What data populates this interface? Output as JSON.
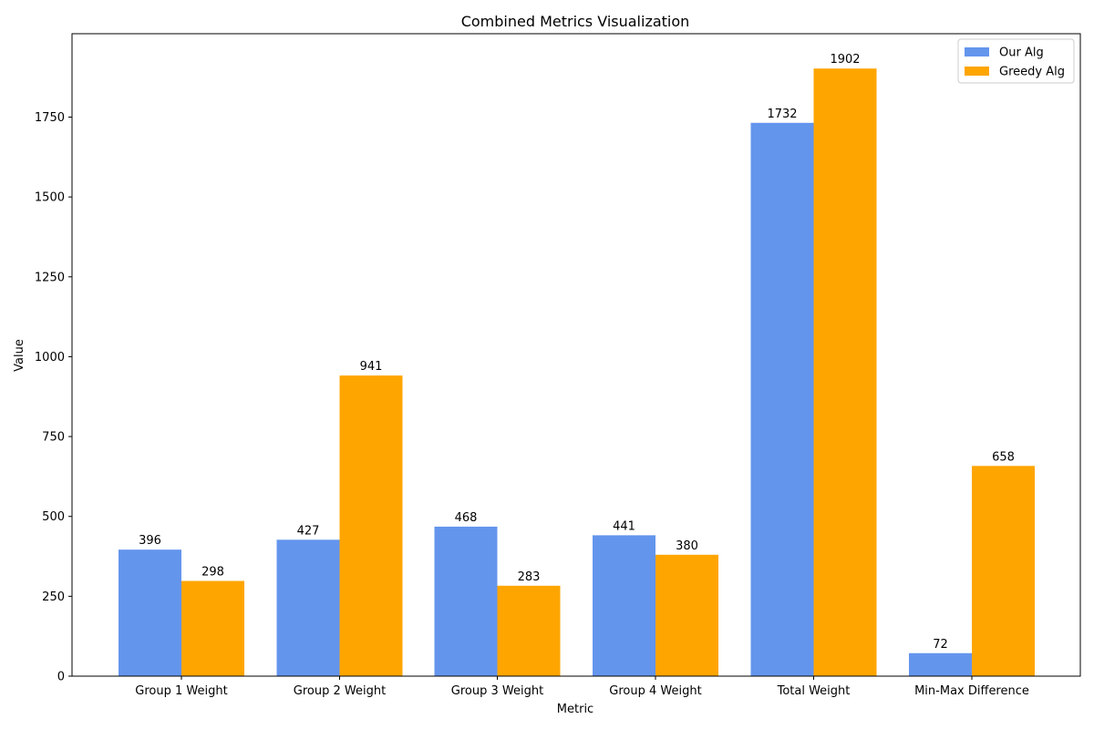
{
  "chart_data": {
    "type": "bar",
    "title": "Combined Metrics Visualization",
    "xlabel": "Metric",
    "ylabel": "Value",
    "categories": [
      "Group 1 Weight",
      "Group 2 Weight",
      "Group 3 Weight",
      "Group 4 Weight",
      "Total Weight",
      "Min-Max Difference"
    ],
    "series": [
      {
        "name": "Our Alg",
        "values": [
          396,
          427,
          468,
          441,
          1732,
          72
        ],
        "color": "#6495ED"
      },
      {
        "name": "Greedy Alg",
        "values": [
          298,
          941,
          283,
          380,
          1902,
          658
        ],
        "color": "#FFA500"
      }
    ],
    "ylim": [
      0,
      2000
    ],
    "yticks": [
      0,
      250,
      500,
      750,
      1000,
      1250,
      1500,
      1750
    ],
    "grid": false,
    "legend_position": "top-right"
  }
}
